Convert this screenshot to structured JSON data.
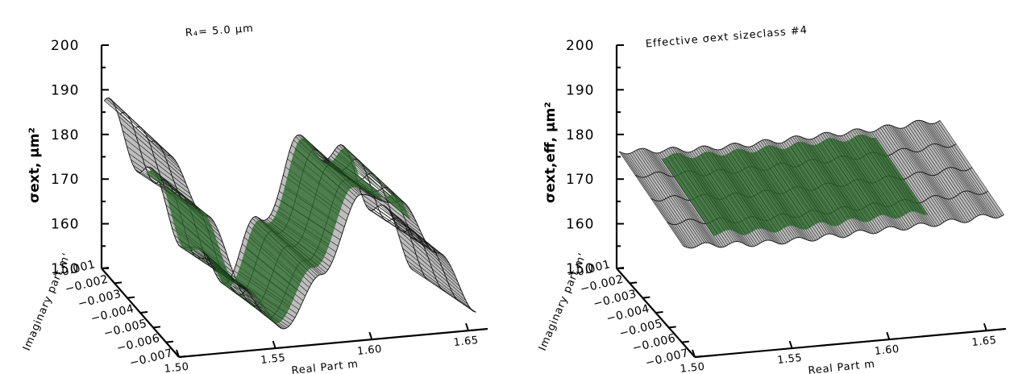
{
  "panels": [
    {
      "title": "R₄= 5.0 μm",
      "zlabel": "σext, μm²",
      "xlabel": "Real Part m",
      "ylabel": "Imaginary part m'"
    },
    {
      "title": "Effective σext sizeclass #4",
      "zlabel": "σext,eff, μm²",
      "xlabel": "Real Part m",
      "ylabel": "Imaginary part m'"
    }
  ],
  "chart_data": [
    {
      "type": "surface",
      "title": "R₄= 5.0 μm",
      "xlabel": "Real Part m",
      "ylabel": "Imaginary part m'",
      "zlabel": "σext, μm²",
      "x_ticks": [
        "1.50",
        "1.55",
        "1.60",
        "1.65"
      ],
      "y_ticks": [
        "-0.001",
        "-0.002",
        "-0.003",
        "-0.004",
        "-0.005",
        "-0.006",
        "-0.007"
      ],
      "z_ticks": [
        "150",
        "160",
        "170",
        "180",
        "190",
        "200"
      ],
      "xlim": [
        1.5,
        1.66
      ],
      "ylim": [
        -0.007,
        -0.001
      ],
      "zlim": [
        150,
        200
      ],
      "surface_profile_along_x": {
        "x": [
          1.5,
          1.52,
          1.54,
          1.56,
          1.58,
          1.6,
          1.62,
          1.64,
          1.66
        ],
        "z": [
          193,
          179,
          162,
          152,
          163,
          180,
          178,
          166,
          152
        ]
      },
      "highlight_region": {
        "color": "#2e6b2e",
        "x_range": [
          1.52,
          1.63
        ],
        "y_range": [
          -0.0055,
          -0.0015
        ]
      }
    },
    {
      "type": "surface",
      "title": "Effective σext sizeclass #4",
      "xlabel": "Real Part m",
      "ylabel": "Imaginary part m'",
      "zlabel": "σext,eff, μm²",
      "x_ticks": [
        "1.50",
        "1.55",
        "1.60",
        "1.65"
      ],
      "y_ticks": [
        "-0.001",
        "-0.002",
        "-0.003",
        "-0.004",
        "-0.005",
        "-0.006",
        "-0.007"
      ],
      "z_ticks": [
        "150",
        "160",
        "170",
        "180",
        "190",
        "200"
      ],
      "xlim": [
        1.5,
        1.66
      ],
      "ylim": [
        -0.007,
        -0.001
      ],
      "zlim": [
        150,
        200
      ],
      "surface_profile_along_x": {
        "x": [
          1.5,
          1.52,
          1.54,
          1.56,
          1.58,
          1.6,
          1.62,
          1.64,
          1.66
        ],
        "z": [
          171,
          170.5,
          170,
          170,
          170.2,
          170.5,
          170.7,
          171,
          171.5
        ]
      },
      "highlight_region": {
        "color": "#2e6b2e",
        "x_range": [
          1.52,
          1.63
        ],
        "y_range": [
          -0.0055,
          -0.0015
        ]
      }
    }
  ]
}
